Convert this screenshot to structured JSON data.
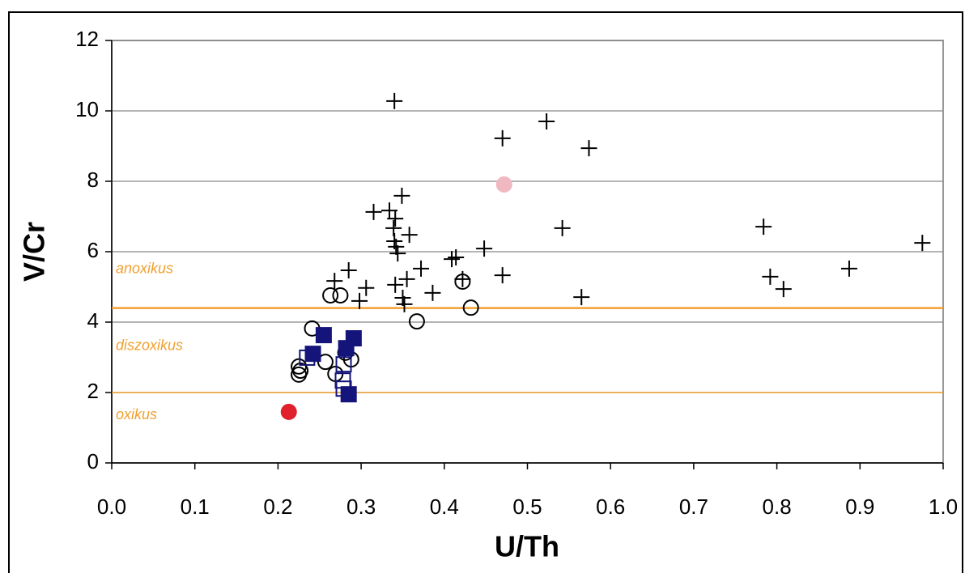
{
  "chart_data": {
    "type": "scatter",
    "x_label": "U/Th",
    "y_label": "V/Cr",
    "xlim": [
      0,
      1
    ],
    "ylim": [
      0,
      12
    ],
    "xticks": [
      {
        "value": 0,
        "label": "0.0"
      },
      0.1,
      0.2,
      0.3,
      0.4,
      0.5,
      0.6,
      0.7,
      0.8,
      0.9,
      {
        "value": 1,
        "label": "1.0"
      }
    ],
    "yticks": [
      0,
      2,
      4,
      6,
      8,
      10,
      12
    ],
    "grid": true,
    "thresholds": [
      4.4,
      2.0
    ],
    "threshold_color": "#f0a030",
    "zone_labels": [
      "anoxikus",
      "diszoxikus",
      "oxikus"
    ],
    "series": [
      {
        "marker": "plus",
        "color": "#000000",
        "x": [
          0.34,
          0.523,
          0.47,
          0.574,
          0.349,
          0.315,
          0.334,
          0.341,
          0.339,
          0.358,
          0.34,
          0.342,
          0.344,
          0.542,
          0.784,
          0.975,
          0.448,
          0.414,
          0.409,
          0.285,
          0.372,
          0.47,
          0.887,
          0.792,
          0.808,
          0.268,
          0.306,
          0.341,
          0.355,
          0.422,
          0.386,
          0.298,
          0.35,
          0.352,
          0.565
        ],
        "values": [
          10.28,
          9.7,
          9.22,
          8.94,
          7.59,
          7.13,
          7.17,
          6.94,
          6.67,
          6.48,
          6.3,
          6.14,
          5.95,
          6.67,
          6.71,
          6.25,
          6.09,
          5.84,
          5.79,
          5.47,
          5.52,
          5.33,
          5.52,
          5.29,
          4.94,
          5.17,
          4.97,
          5.06,
          5.22,
          5.22,
          4.83,
          4.6,
          4.69,
          4.51,
          4.71
        ]
      },
      {
        "marker": "open-circle",
        "color": "#000000",
        "x": [
          0.263,
          0.275,
          0.422,
          0.432,
          0.367,
          0.241,
          0.225,
          0.225,
          0.257,
          0.269,
          0.281,
          0.288,
          0.227
        ],
        "values": [
          4.76,
          4.76,
          5.15,
          4.41,
          4.02,
          3.82,
          2.74,
          2.51,
          2.87,
          2.53,
          3.13,
          2.94,
          2.62
        ]
      },
      {
        "marker": "square",
        "color": "#14147a",
        "x": [
          0.255,
          0.242,
          0.291,
          0.282,
          0.285
        ],
        "values": [
          3.63,
          3.1,
          3.54,
          3.26,
          1.95
        ]
      },
      {
        "marker": "open-square",
        "color": "#14147a",
        "x": [
          0.235,
          0.279,
          0.278,
          0.279
        ],
        "values": [
          2.99,
          2.8,
          2.34,
          2.11
        ]
      },
      {
        "marker": "circle",
        "color": "#e0202a",
        "x": [
          0.213
        ],
        "values": [
          1.45
        ]
      },
      {
        "marker": "circle",
        "color": "#f0b8c0",
        "x": [
          0.472
        ],
        "values": [
          7.91
        ]
      }
    ]
  }
}
